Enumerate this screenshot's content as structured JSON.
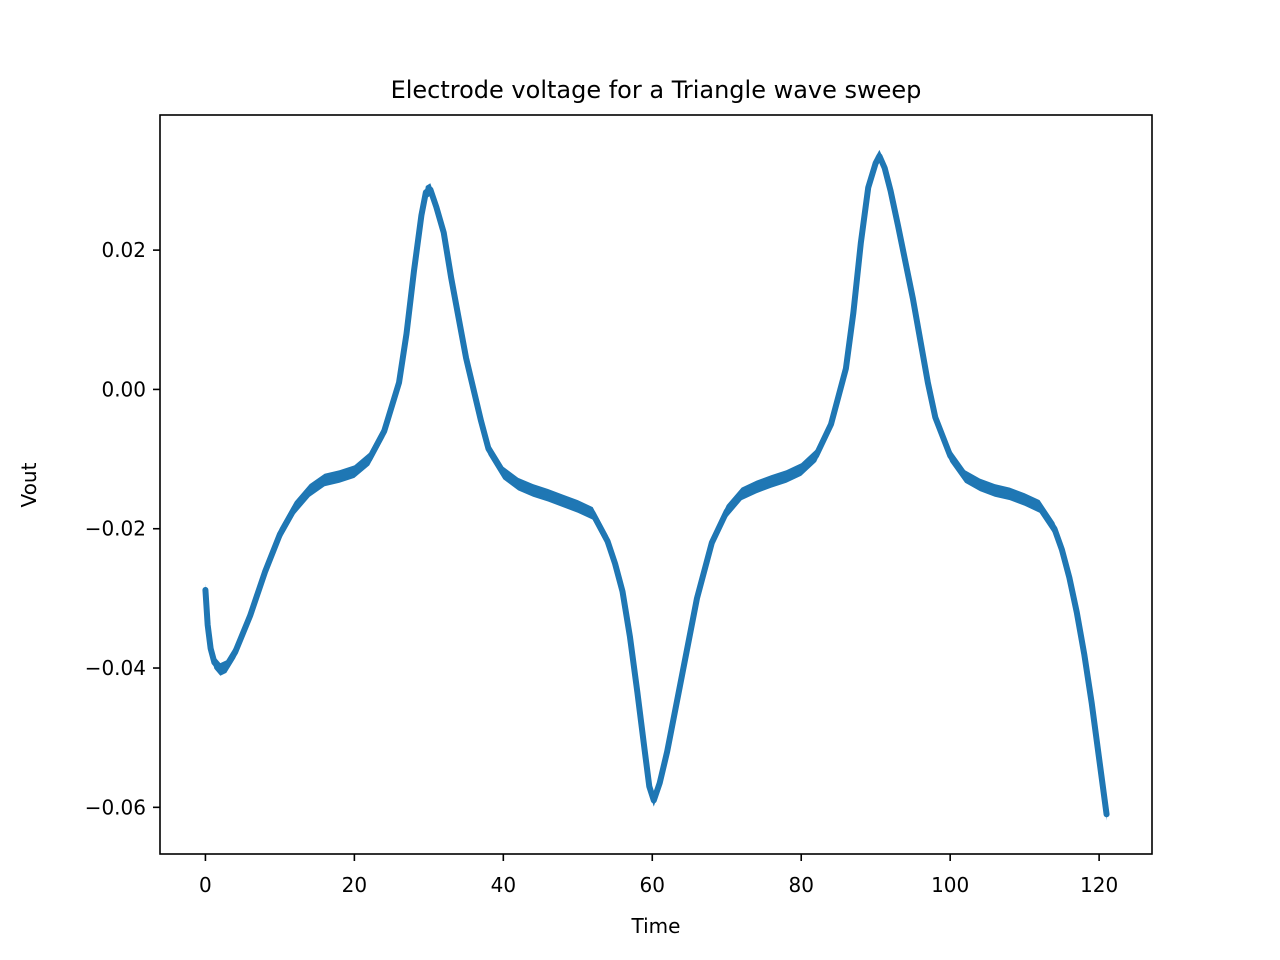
{
  "chart_data": {
    "type": "line",
    "title": "Electrode voltage for a Triangle wave sweep",
    "xlabel": "Time",
    "ylabel": "Vout",
    "xlim": [
      -6.1,
      127.1
    ],
    "ylim": [
      -0.0667,
      0.0394
    ],
    "xticks": [
      0,
      20,
      40,
      60,
      80,
      100,
      120
    ],
    "xtick_labels": [
      "0",
      "20",
      "40",
      "60",
      "80",
      "100",
      "120"
    ],
    "yticks": [
      0.02,
      0.0,
      -0.02,
      -0.04,
      -0.06
    ],
    "ytick_labels": [
      "0.02",
      "0.00",
      "−0.02",
      "−0.04",
      "−0.06"
    ],
    "grid": false,
    "legend": "none",
    "series": [
      {
        "color": "#1f77b4",
        "noise_band": 0.0009,
        "x": [
          0,
          0.3,
          0.7,
          1.2,
          2,
          2.8,
          4,
          6,
          8,
          10,
          12,
          14,
          16,
          18,
          20,
          22,
          24,
          26,
          27,
          28,
          29,
          29.6,
          30.2,
          31,
          32,
          33,
          35,
          37,
          38,
          40,
          42,
          44,
          46,
          48,
          50,
          52,
          54,
          55,
          56,
          57,
          58,
          59,
          59.6,
          60.2,
          61,
          62,
          64,
          66,
          68,
          70,
          72,
          74,
          76,
          78,
          80,
          82,
          84,
          86,
          87,
          88,
          89,
          90,
          90.5,
          91.2,
          92,
          93,
          95,
          97,
          98,
          100,
          102,
          104,
          106,
          108,
          110,
          112,
          114,
          115,
          116,
          117,
          118,
          119,
          120,
          120.5,
          121
        ],
        "y": [
          -0.0288,
          -0.0338,
          -0.0372,
          -0.0392,
          -0.0402,
          -0.0398,
          -0.0377,
          -0.0325,
          -0.0262,
          -0.0208,
          -0.017,
          -0.0145,
          -0.013,
          -0.0125,
          -0.0118,
          -0.01,
          -0.006,
          0.001,
          0.008,
          0.017,
          0.025,
          0.0283,
          0.0287,
          0.0262,
          0.0225,
          0.016,
          0.0045,
          -0.0045,
          -0.0085,
          -0.012,
          -0.0136,
          -0.0145,
          -0.0152,
          -0.016,
          -0.0168,
          -0.0178,
          -0.0218,
          -0.025,
          -0.029,
          -0.0355,
          -0.0435,
          -0.052,
          -0.057,
          -0.059,
          -0.0565,
          -0.052,
          -0.041,
          -0.03,
          -0.022,
          -0.0175,
          -0.015,
          -0.014,
          -0.0132,
          -0.0125,
          -0.0115,
          -0.0095,
          -0.005,
          0.003,
          0.011,
          0.021,
          0.029,
          0.0325,
          0.0335,
          0.0318,
          0.0285,
          0.0235,
          0.013,
          0.001,
          -0.004,
          -0.0095,
          -0.0125,
          -0.0137,
          -0.0145,
          -0.015,
          -0.0158,
          -0.0168,
          -0.02,
          -0.023,
          -0.027,
          -0.032,
          -0.038,
          -0.045,
          -0.053,
          -0.057,
          -0.061
        ]
      }
    ]
  }
}
